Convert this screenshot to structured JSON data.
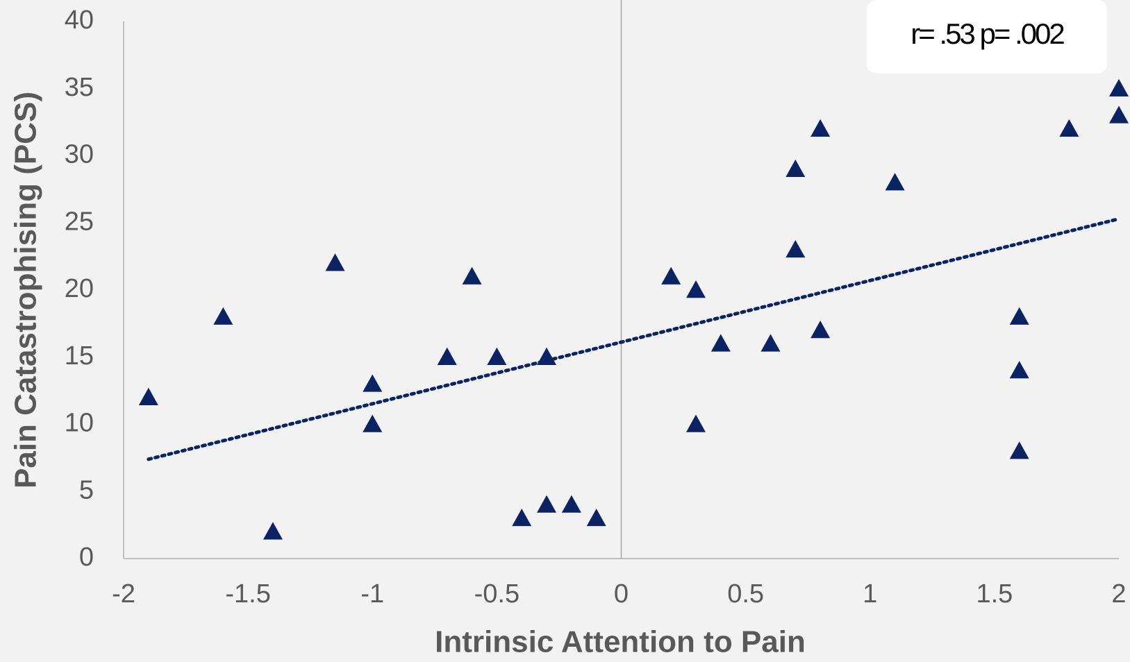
{
  "chart_data": {
    "type": "scatter",
    "x_label": "Intrinsic Attention to Pain",
    "y_label": "Pain Catastrophising (PCS)",
    "annotation": "r= .53 p= .002",
    "color": "#0b2363",
    "x": [
      -1.9,
      -1.6,
      -1.4,
      -1.15,
      -1,
      -1,
      -0.7,
      -0.6,
      -0.5,
      -0.4,
      -0.3,
      -0.3,
      -0.2,
      -0.1,
      0.2,
      0.3,
      0.3,
      0.4,
      0.6,
      0.7,
      0.7,
      0.8,
      0.8,
      1.1,
      1.6,
      1.6,
      1.6,
      1.8,
      2,
      2
    ],
    "values": [
      12,
      18,
      2,
      22,
      13,
      10,
      15,
      21,
      15,
      3,
      15,
      4,
      4,
      3,
      21,
      20,
      10,
      16,
      16,
      29,
      23,
      32,
      17,
      28,
      18,
      14,
      8,
      32,
      35,
      33
    ],
    "trendline": {
      "x": [
        -1.9,
        2
      ],
      "y": [
        7.4,
        25.3
      ]
    },
    "xlim": [
      -2,
      2
    ],
    "xticks": [
      -2,
      -1.5,
      -1,
      -0.5,
      0,
      0.5,
      1,
      1.5,
      2
    ],
    "ylim": [
      0,
      40
    ],
    "yticks": [
      0,
      5,
      10,
      15,
      20,
      25,
      30,
      35,
      40
    ]
  }
}
